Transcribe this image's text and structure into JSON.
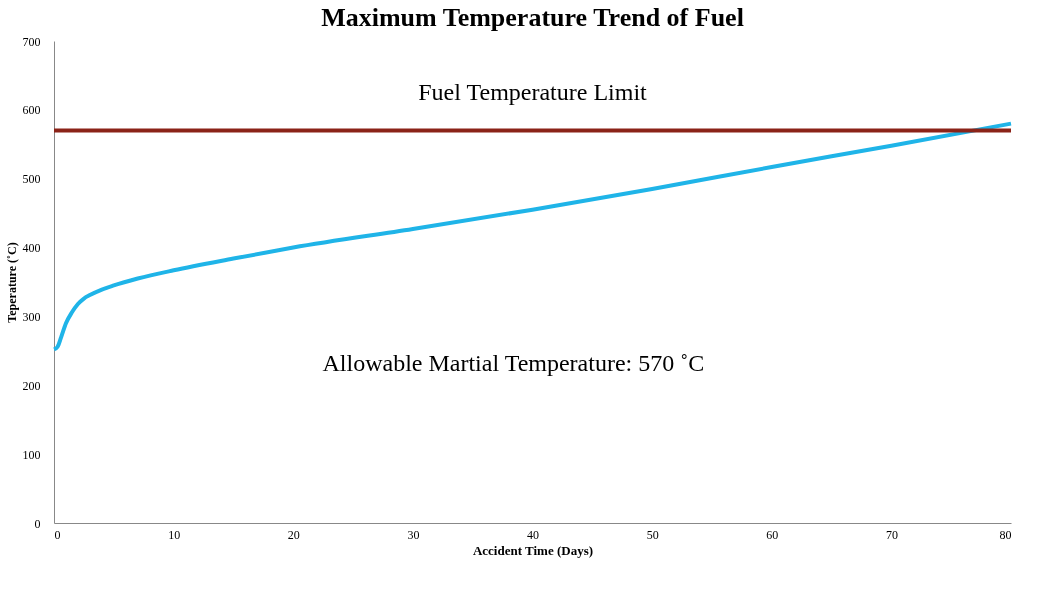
{
  "chart_data": {
    "type": "line",
    "title": "Maximum Temperature Trend of Fuel",
    "xlabel": "Accident Time  (Days)",
    "ylabel": "Teperature  (˚C)",
    "x": [
      0,
      0.3,
      0.6,
      1,
      1.5,
      2,
      2.5,
      3,
      4,
      5,
      7,
      10,
      15,
      20,
      30,
      40,
      50,
      60,
      70,
      80
    ],
    "series": [
      {
        "color": "#1fb4e8",
        "values": [
          252,
          256,
          270,
          290,
          306,
          318,
          326,
          331,
          339,
          345,
          355,
          367,
          384,
          400,
          427,
          455,
          485,
          517,
          548,
          580
        ]
      }
    ],
    "xlim": [
      0,
      80
    ],
    "xticks": [
      0,
      10,
      20,
      30,
      40,
      50,
      60,
      70,
      80
    ],
    "ylim": [
      0,
      700
    ],
    "yticks": [
      0,
      100,
      200,
      300,
      400,
      500,
      600,
      700
    ],
    "ref_lines": [
      {
        "axis": "y",
        "value": 570,
        "label": "Fuel Temperature Limit",
        "color": "#8b2318"
      }
    ],
    "annotations": [
      "Allowable Martial Temperature: 570 ˚C"
    ],
    "grid": false,
    "marker": "none",
    "line_style": "solid"
  }
}
